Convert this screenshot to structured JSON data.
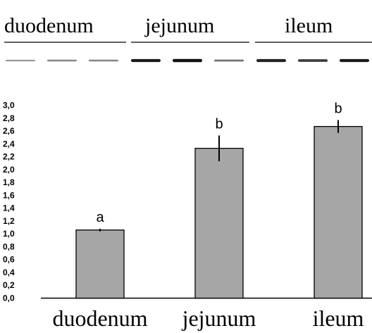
{
  "blot": {
    "lanes": [
      "duodenum",
      "jejunum",
      "ileum"
    ],
    "bands_per_lane": 3,
    "band_intensity": [
      [
        0.25,
        0.35,
        0.35
      ],
      [
        0.95,
        1.0,
        0.45
      ],
      [
        0.9,
        0.75,
        0.95
      ]
    ]
  },
  "chart_data": {
    "type": "bar",
    "categories": [
      "duodenum",
      "jejunum",
      "ileum"
    ],
    "values": [
      1.06,
      2.33,
      2.67
    ],
    "error": [
      0.02,
      0.2,
      0.1
    ],
    "significance": [
      "a",
      "b",
      "b"
    ],
    "ylim": [
      0,
      3.0
    ],
    "yticks": [
      "3,0",
      "2,8",
      "2,6",
      "2,4",
      "2,2",
      "2,0",
      "1,8",
      "1,6",
      "1,4",
      "1,2",
      "1,0",
      "0,8",
      "0,6",
      "0,4",
      "0,2",
      "0,0"
    ],
    "xlabel": "",
    "ylabel": "",
    "grid": false,
    "colors": {
      "bar_fill": "#a6a6a6",
      "bar_stroke": "#000000",
      "band": "#111111"
    }
  }
}
